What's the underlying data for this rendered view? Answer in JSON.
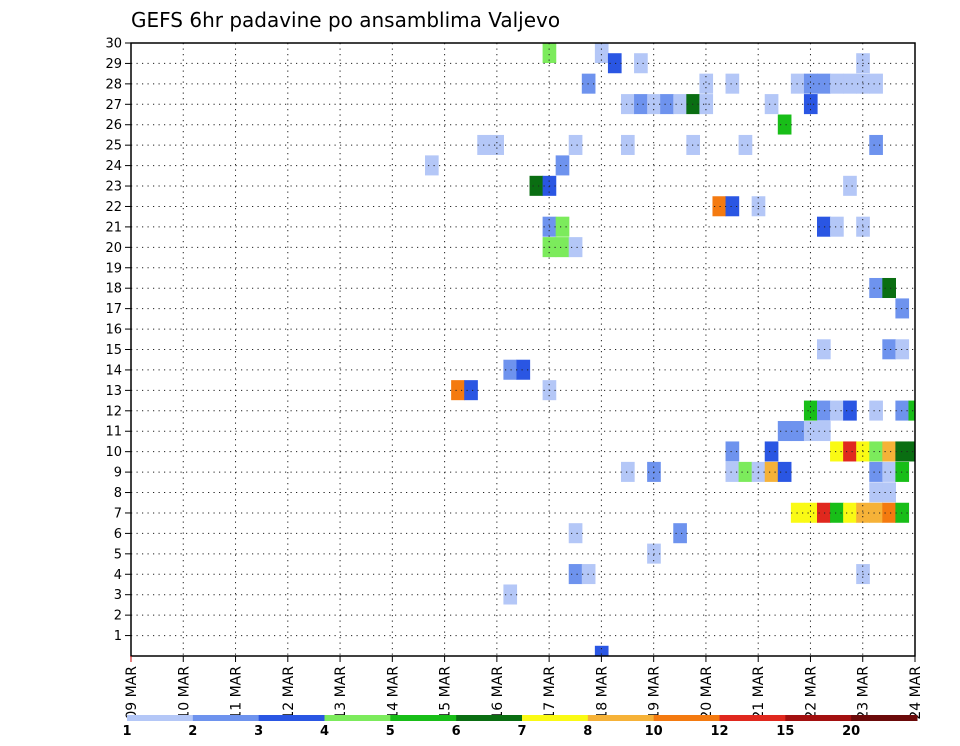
{
  "chart_data": {
    "type": "heatmap",
    "title": "GEFS 6hr padavine po ansamblima Valjevo",
    "xlabel": "",
    "ylabel": "",
    "x_ticks": [
      "09 MAR",
      "10 MAR",
      "11 MAR",
      "12 MAR",
      "13 MAR",
      "14 MAR",
      "15 MAR",
      "16 MAR",
      "17 MAR",
      "18 MAR",
      "19 MAR",
      "20 MAR",
      "21 MAR",
      "22 MAR",
      "23 MAR",
      "24 MAR"
    ],
    "x_unit": "6-hour step from 09 MAR 00Z",
    "xlim": [
      0,
      60
    ],
    "y_ticks": [
      1,
      2,
      3,
      4,
      5,
      6,
      7,
      8,
      9,
      10,
      11,
      12,
      13,
      14,
      15,
      16,
      17,
      18,
      19,
      20,
      21,
      22,
      23,
      24,
      25,
      26,
      27,
      28,
      29,
      30
    ],
    "ylim": [
      0,
      30
    ],
    "grid": true,
    "legend_position": "bottom",
    "color_scale": {
      "labels": [
        "1",
        "2",
        "3",
        "4",
        "5",
        "6",
        "7",
        "8",
        "10",
        "12",
        "15",
        "20"
      ],
      "colors": [
        "#b4c7f7",
        "#6e93ee",
        "#2a56e3",
        "#7ceb5c",
        "#18be18",
        "#0a6e12",
        "#fafa14",
        "#f6b238",
        "#f47a10",
        "#e0281e",
        "#a31010",
        "#6b0a0a"
      ]
    },
    "cells": [
      {
        "y": 30,
        "x": 32,
        "c": 4
      },
      {
        "y": 30,
        "x": 36,
        "c": 1
      },
      {
        "y": 29,
        "x": 37,
        "c": 3
      },
      {
        "y": 29,
        "x": 39,
        "c": 1
      },
      {
        "y": 29,
        "x": 56,
        "c": 1
      },
      {
        "y": 28,
        "x": 35,
        "c": 2
      },
      {
        "y": 28,
        "x": 44,
        "c": 1
      },
      {
        "y": 28,
        "x": 46,
        "c": 1
      },
      {
        "y": 28,
        "x": 51,
        "c": 1
      },
      {
        "y": 28,
        "x": 52,
        "c": 2
      },
      {
        "y": 28,
        "x": 53,
        "c": 2
      },
      {
        "y": 28,
        "x": 54,
        "c": 1
      },
      {
        "y": 28,
        "x": 55,
        "c": 1
      },
      {
        "y": 28,
        "x": 56,
        "c": 1
      },
      {
        "y": 28,
        "x": 57,
        "c": 1
      },
      {
        "y": 27,
        "x": 38,
        "c": 1
      },
      {
        "y": 27,
        "x": 39,
        "c": 2
      },
      {
        "y": 27,
        "x": 40,
        "c": 1
      },
      {
        "y": 27,
        "x": 41,
        "c": 2
      },
      {
        "y": 27,
        "x": 42,
        "c": 1
      },
      {
        "y": 27,
        "x": 43,
        "c": 6
      },
      {
        "y": 27,
        "x": 44,
        "c": 1
      },
      {
        "y": 27,
        "x": 49,
        "c": 1
      },
      {
        "y": 27,
        "x": 52,
        "c": 3
      },
      {
        "y": 26,
        "x": 50,
        "c": 5
      },
      {
        "y": 25,
        "x": 27,
        "c": 1
      },
      {
        "y": 25,
        "x": 28,
        "c": 1
      },
      {
        "y": 25,
        "x": 34,
        "c": 1
      },
      {
        "y": 25,
        "x": 38,
        "c": 1
      },
      {
        "y": 25,
        "x": 43,
        "c": 1
      },
      {
        "y": 25,
        "x": 47,
        "c": 1
      },
      {
        "y": 25,
        "x": 57,
        "c": 2
      },
      {
        "y": 24,
        "x": 23,
        "c": 1
      },
      {
        "y": 24,
        "x": 33,
        "c": 2
      },
      {
        "y": 23,
        "x": 31,
        "c": 6
      },
      {
        "y": 23,
        "x": 32,
        "c": 3
      },
      {
        "y": 23,
        "x": 55,
        "c": 1
      },
      {
        "y": 22,
        "x": 45,
        "c": 9
      },
      {
        "y": 22,
        "x": 46,
        "c": 3
      },
      {
        "y": 22,
        "x": 48,
        "c": 1
      },
      {
        "y": 21,
        "x": 32,
        "c": 2
      },
      {
        "y": 21,
        "x": 33,
        "c": 4
      },
      {
        "y": 21,
        "x": 53,
        "c": 3
      },
      {
        "y": 21,
        "x": 54,
        "c": 1
      },
      {
        "y": 21,
        "x": 56,
        "c": 1
      },
      {
        "y": 20,
        "x": 32,
        "c": 4
      },
      {
        "y": 20,
        "x": 33,
        "c": 4
      },
      {
        "y": 20,
        "x": 34,
        "c": 1
      },
      {
        "y": 18,
        "x": 57,
        "c": 2
      },
      {
        "y": 18,
        "x": 58,
        "c": 6
      },
      {
        "y": 17,
        "x": 59,
        "c": 2
      },
      {
        "y": 15,
        "x": 53,
        "c": 1
      },
      {
        "y": 15,
        "x": 58,
        "c": 2
      },
      {
        "y": 15,
        "x": 59,
        "c": 1
      },
      {
        "y": 14,
        "x": 29,
        "c": 2
      },
      {
        "y": 14,
        "x": 30,
        "c": 3
      },
      {
        "y": 13,
        "x": 25,
        "c": 9
      },
      {
        "y": 13,
        "x": 26,
        "c": 3
      },
      {
        "y": 13,
        "x": 32,
        "c": 1
      },
      {
        "y": 12,
        "x": 52,
        "c": 5
      },
      {
        "y": 12,
        "x": 53,
        "c": 2
      },
      {
        "y": 12,
        "x": 54,
        "c": 1
      },
      {
        "y": 12,
        "x": 55,
        "c": 3
      },
      {
        "y": 12,
        "x": 57,
        "c": 1
      },
      {
        "y": 12,
        "x": 59,
        "c": 2
      },
      {
        "y": 12,
        "x": 60,
        "c": 5
      },
      {
        "y": 11,
        "x": 50,
        "c": 2
      },
      {
        "y": 11,
        "x": 51,
        "c": 2
      },
      {
        "y": 11,
        "x": 52,
        "c": 1
      },
      {
        "y": 11,
        "x": 53,
        "c": 1
      },
      {
        "y": 10,
        "x": 46,
        "c": 2
      },
      {
        "y": 10,
        "x": 49,
        "c": 3
      },
      {
        "y": 10,
        "x": 54,
        "c": 7
      },
      {
        "y": 10,
        "x": 55,
        "c": 10
      },
      {
        "y": 10,
        "x": 56,
        "c": 7
      },
      {
        "y": 10,
        "x": 57,
        "c": 4
      },
      {
        "y": 10,
        "x": 58,
        "c": 8
      },
      {
        "y": 10,
        "x": 59,
        "c": 6
      },
      {
        "y": 10,
        "x": 60,
        "c": 6
      },
      {
        "y": 9,
        "x": 38,
        "c": 1
      },
      {
        "y": 9,
        "x": 40,
        "c": 2
      },
      {
        "y": 9,
        "x": 46,
        "c": 1
      },
      {
        "y": 9,
        "x": 47,
        "c": 4
      },
      {
        "y": 9,
        "x": 48,
        "c": 1
      },
      {
        "y": 9,
        "x": 49,
        "c": 8
      },
      {
        "y": 9,
        "x": 50,
        "c": 3
      },
      {
        "y": 9,
        "x": 57,
        "c": 2
      },
      {
        "y": 9,
        "x": 58,
        "c": 1
      },
      {
        "y": 9,
        "x": 59,
        "c": 5
      },
      {
        "y": 8,
        "x": 57,
        "c": 1
      },
      {
        "y": 8,
        "x": 58,
        "c": 1
      },
      {
        "y": 7,
        "x": 51,
        "c": 7
      },
      {
        "y": 7,
        "x": 52,
        "c": 7
      },
      {
        "y": 7,
        "x": 53,
        "c": 10
      },
      {
        "y": 7,
        "x": 54,
        "c": 5
      },
      {
        "y": 7,
        "x": 55,
        "c": 7
      },
      {
        "y": 7,
        "x": 56,
        "c": 8
      },
      {
        "y": 7,
        "x": 57,
        "c": 8
      },
      {
        "y": 7,
        "x": 58,
        "c": 9
      },
      {
        "y": 7,
        "x": 59,
        "c": 5
      },
      {
        "y": 6,
        "x": 34,
        "c": 1
      },
      {
        "y": 6,
        "x": 42,
        "c": 2
      },
      {
        "y": 5,
        "x": 40,
        "c": 1
      },
      {
        "y": 4,
        "x": 34,
        "c": 2
      },
      {
        "y": 4,
        "x": 35,
        "c": 1
      },
      {
        "y": 4,
        "x": 56,
        "c": 1
      },
      {
        "y": 3,
        "x": 29,
        "c": 1
      },
      {
        "y": 0,
        "x": 36,
        "c": 3
      }
    ]
  }
}
